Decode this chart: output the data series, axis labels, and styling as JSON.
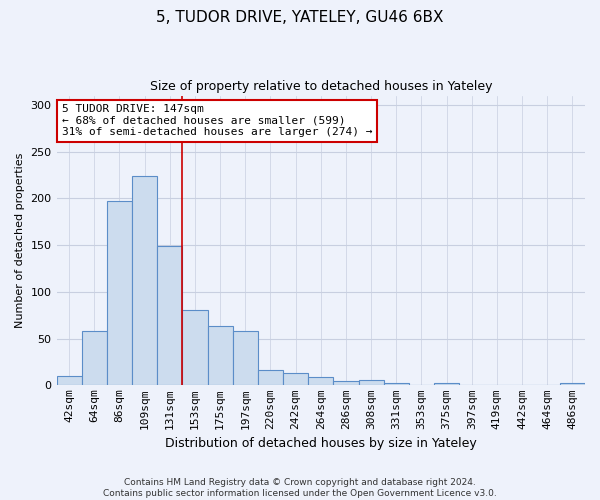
{
  "title1": "5, TUDOR DRIVE, YATELEY, GU46 6BX",
  "title2": "Size of property relative to detached houses in Yateley",
  "xlabel": "Distribution of detached houses by size in Yateley",
  "ylabel": "Number of detached properties",
  "footer1": "Contains HM Land Registry data © Crown copyright and database right 2024.",
  "footer2": "Contains public sector information licensed under the Open Government Licence v3.0.",
  "annotation_line1": "5 TUDOR DRIVE: 147sqm",
  "annotation_line2": "← 68% of detached houses are smaller (599)",
  "annotation_line3": "31% of semi-detached houses are larger (274) →",
  "bar_labels": [
    "42sqm",
    "64sqm",
    "86sqm",
    "109sqm",
    "131sqm",
    "153sqm",
    "175sqm",
    "197sqm",
    "220sqm",
    "242sqm",
    "264sqm",
    "286sqm",
    "308sqm",
    "331sqm",
    "353sqm",
    "375sqm",
    "397sqm",
    "419sqm",
    "442sqm",
    "464sqm",
    "486sqm"
  ],
  "bar_values": [
    10,
    58,
    197,
    224,
    149,
    81,
    63,
    58,
    16,
    13,
    9,
    5,
    6,
    3,
    0,
    3,
    0,
    0,
    0,
    0,
    3
  ],
  "bar_color": "#ccdcee",
  "bar_edge_color": "#5b8dc8",
  "vline_color": "#cc0000",
  "vline_x": 4.5,
  "ylim": [
    0,
    310
  ],
  "yticks": [
    0,
    50,
    100,
    150,
    200,
    250,
    300
  ],
  "annotation_box_color": "#ffffff",
  "annotation_box_edge": "#cc0000",
  "bg_color": "#eef2fb",
  "grid_color": "#c8cfe0",
  "title1_fontsize": 11,
  "title2_fontsize": 9,
  "tick_fontsize": 8,
  "ylabel_fontsize": 8,
  "xlabel_fontsize": 9,
  "footer_fontsize": 6.5,
  "ann_fontsize": 8
}
